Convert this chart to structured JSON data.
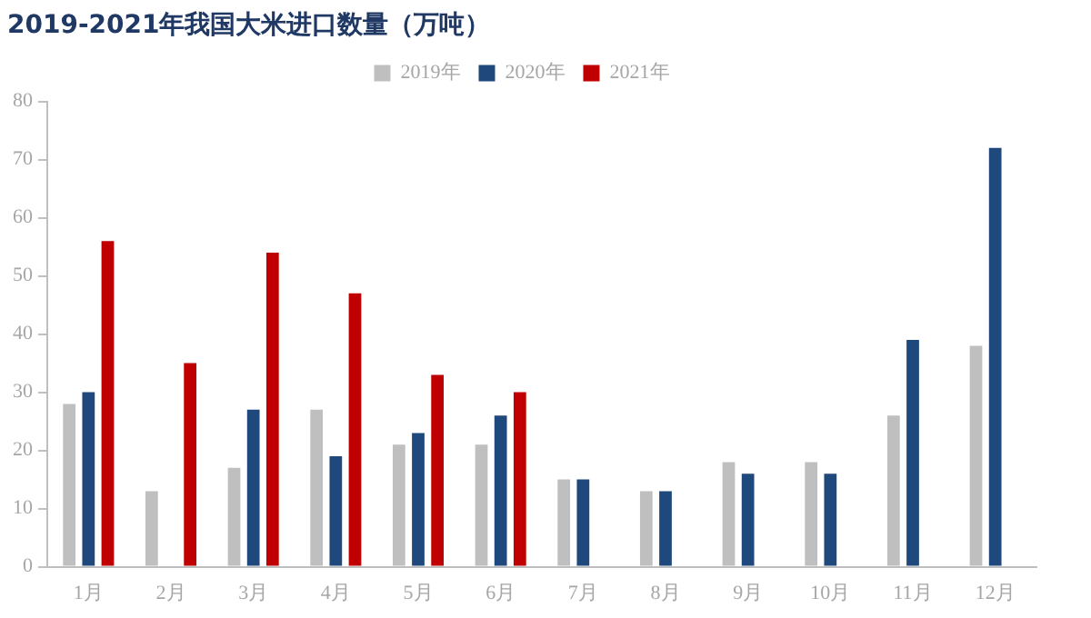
{
  "chart_data": {
    "type": "bar",
    "title": "2019-2021年我国大米进口数量（万吨）",
    "categories": [
      "1月",
      "2月",
      "3月",
      "4月",
      "5月",
      "6月",
      "7月",
      "8月",
      "9月",
      "10月",
      "11月",
      "12月"
    ],
    "series": [
      {
        "name": "2019年",
        "color": "#bfbfbf",
        "values": [
          28,
          13,
          17,
          27,
          21,
          21,
          15,
          13,
          18,
          18,
          26,
          38
        ]
      },
      {
        "name": "2020年",
        "color": "#1f497d",
        "values": [
          30,
          null,
          27,
          19,
          23,
          26,
          15,
          13,
          16,
          16,
          39,
          72
        ]
      },
      {
        "name": "2021年",
        "color": "#c00000",
        "values": [
          56,
          35,
          54,
          47,
          33,
          30,
          null,
          null,
          null,
          null,
          null,
          null
        ]
      }
    ],
    "ylim": [
      0,
      80
    ],
    "yticks": [
      0,
      10,
      20,
      30,
      40,
      50,
      60,
      70,
      80
    ],
    "grid": false,
    "legend": "top"
  }
}
